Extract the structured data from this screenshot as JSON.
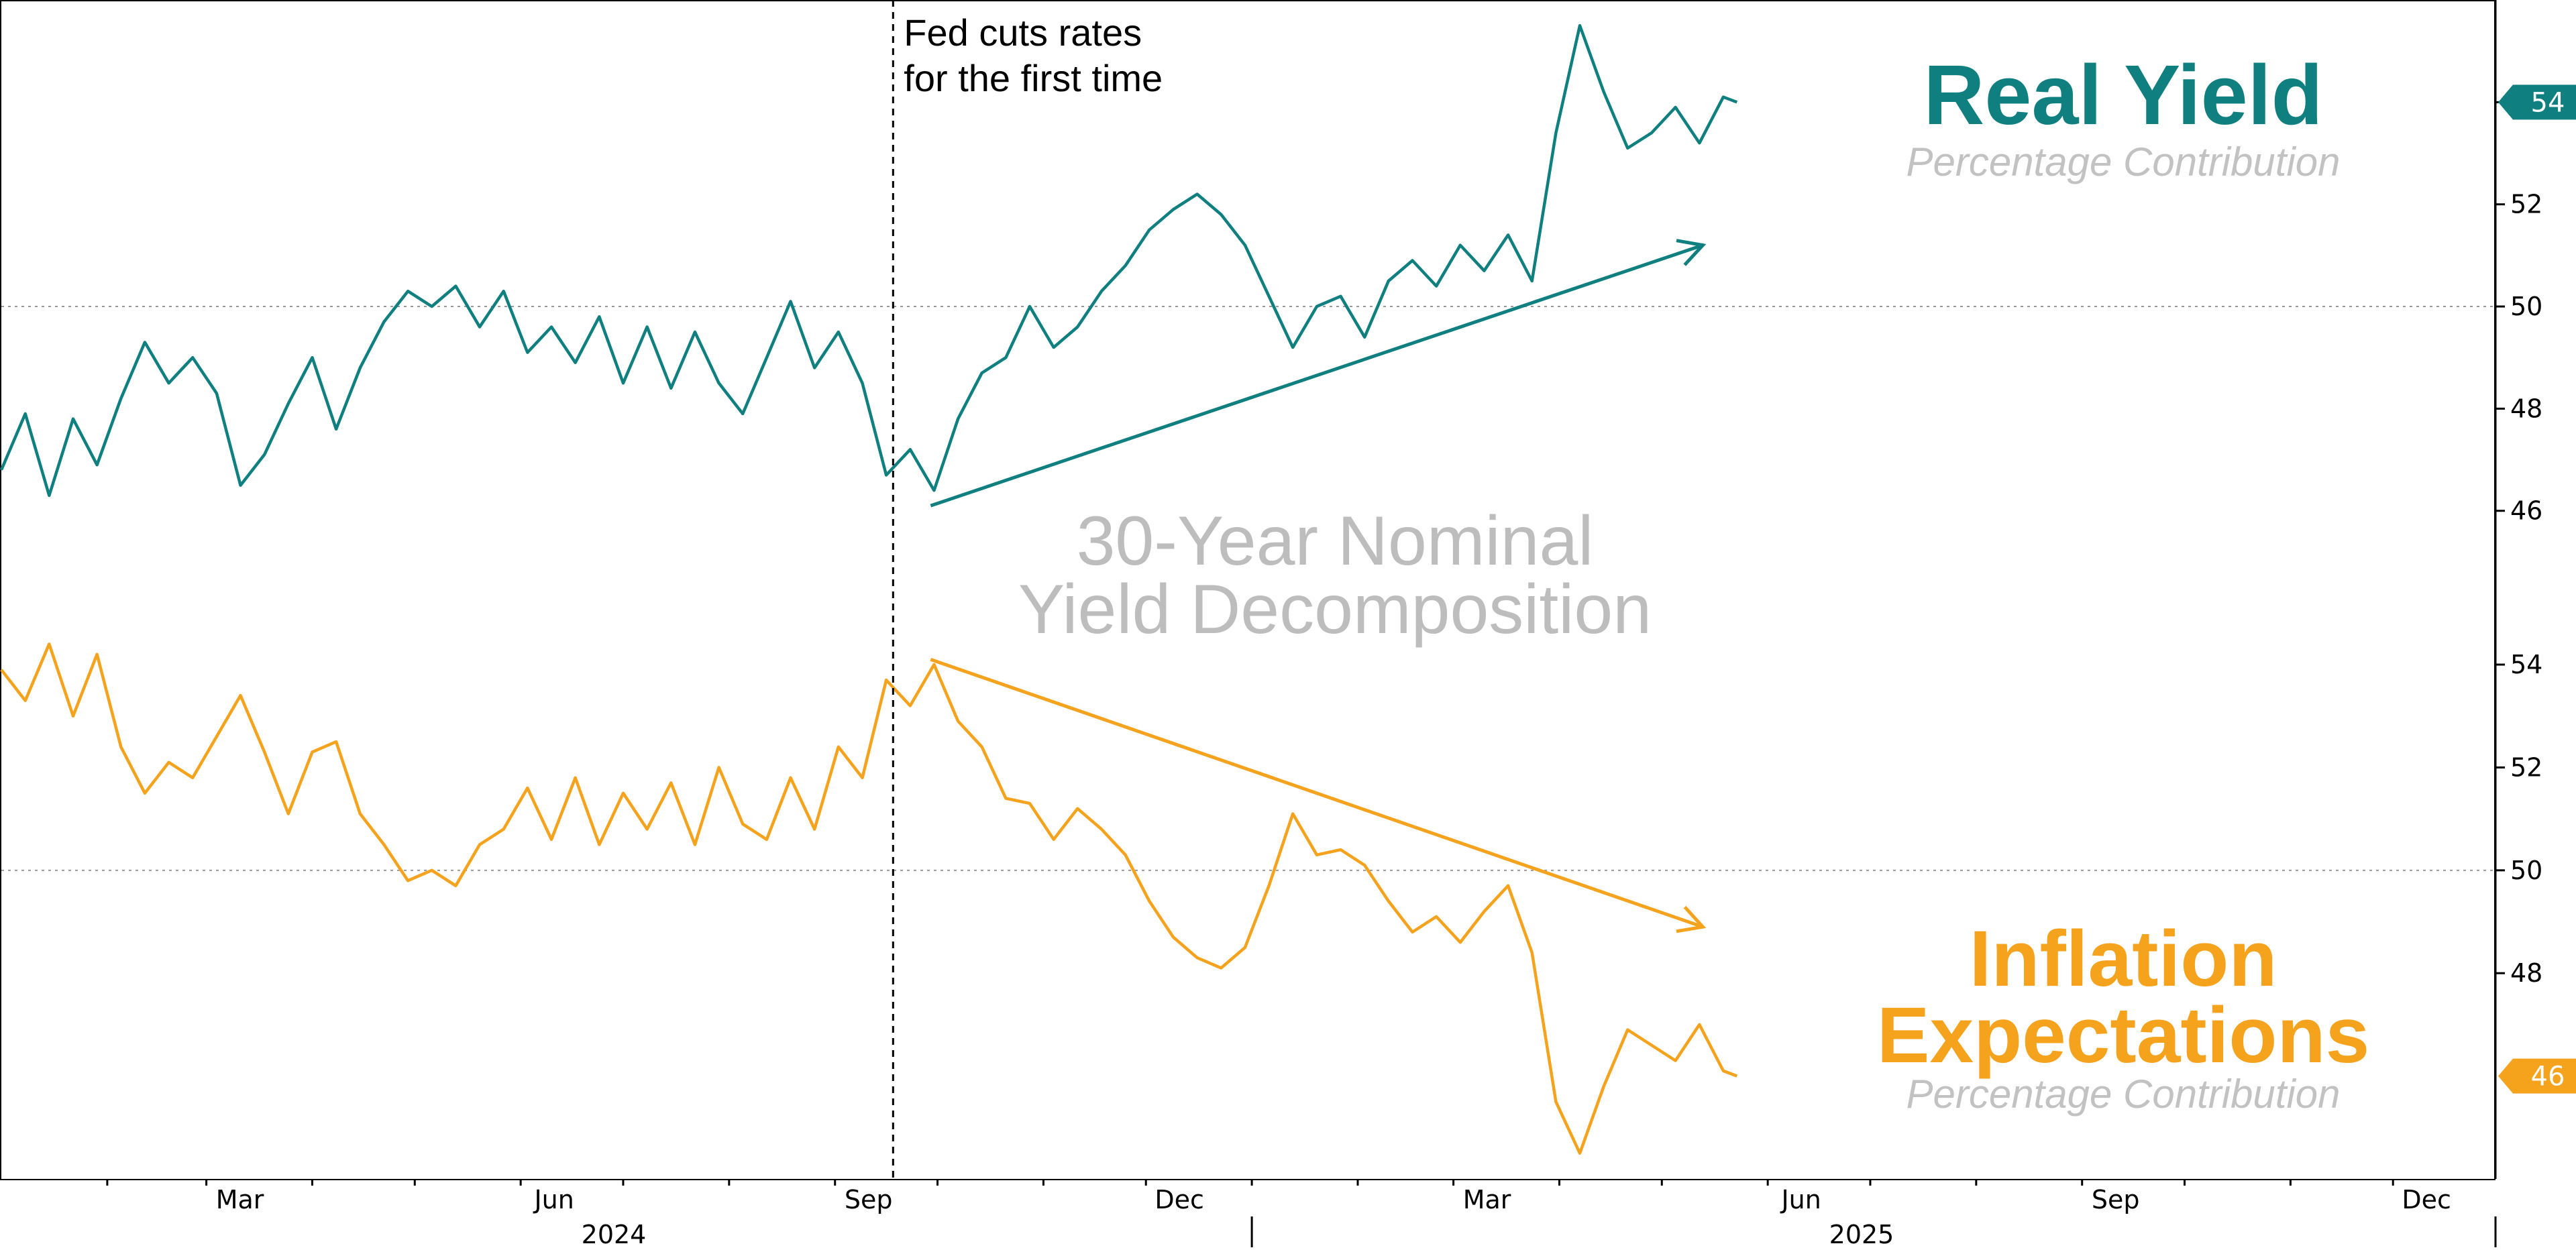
{
  "chart_data": {
    "type": "line",
    "title": "30-Year Nominal Yield Decomposition",
    "annotation": "Fed cuts rates for the first time",
    "annotation_date": "2024-09-18",
    "x_axis": {
      "range": [
        "2024-01-01",
        "2025-12-31"
      ],
      "month_ticks": [
        "Mar",
        "Jun",
        "Sep",
        "Dec",
        "Mar",
        "Jun",
        "Sep",
        "Dec"
      ],
      "years": [
        "2024",
        "2025"
      ]
    },
    "panels": [
      {
        "name": "Real Yield",
        "subtitle": "Percentage Contribution",
        "color": "#107f80",
        "ylim": [
          44.5,
          56
        ],
        "yticks": [
          46,
          48,
          50,
          52,
          54
        ],
        "last_value": 54,
        "trend_arrow": {
          "from": [
            "2024-09-29",
            46.1
          ],
          "to": [
            "2025-05-13",
            51.2
          ]
        }
      },
      {
        "name": "Inflation Expectations",
        "subtitle": "Percentage Contribution",
        "color": "#f5a21d",
        "ylim": [
          44,
          55.5
        ],
        "yticks": [
          48,
          50,
          52,
          54
        ],
        "last_value": 46,
        "trend_arrow": {
          "from": [
            "2024-09-29",
            54.1
          ],
          "to": [
            "2025-05-13",
            48.9
          ]
        }
      }
    ],
    "series": [
      {
        "name": "Real Yield",
        "points": [
          [
            "2024-01-01",
            46.8
          ],
          [
            "2024-01-08",
            47.9
          ],
          [
            "2024-01-15",
            46.3
          ],
          [
            "2024-01-22",
            47.8
          ],
          [
            "2024-01-29",
            46.9
          ],
          [
            "2024-02-05",
            48.2
          ],
          [
            "2024-02-12",
            49.3
          ],
          [
            "2024-02-19",
            48.5
          ],
          [
            "2024-02-26",
            49.0
          ],
          [
            "2024-03-04",
            48.3
          ],
          [
            "2024-03-11",
            46.5
          ],
          [
            "2024-03-18",
            47.1
          ],
          [
            "2024-03-25",
            48.1
          ],
          [
            "2024-04-01",
            49.0
          ],
          [
            "2024-04-08",
            47.6
          ],
          [
            "2024-04-15",
            48.8
          ],
          [
            "2024-04-22",
            49.7
          ],
          [
            "2024-04-29",
            50.3
          ],
          [
            "2024-05-06",
            50.0
          ],
          [
            "2024-05-13",
            50.4
          ],
          [
            "2024-05-20",
            49.6
          ],
          [
            "2024-05-27",
            50.3
          ],
          [
            "2024-06-03",
            49.1
          ],
          [
            "2024-06-10",
            49.6
          ],
          [
            "2024-06-17",
            48.9
          ],
          [
            "2024-06-24",
            49.8
          ],
          [
            "2024-07-01",
            48.5
          ],
          [
            "2024-07-08",
            49.6
          ],
          [
            "2024-07-15",
            48.4
          ],
          [
            "2024-07-22",
            49.5
          ],
          [
            "2024-07-29",
            48.5
          ],
          [
            "2024-08-05",
            47.9
          ],
          [
            "2024-08-12",
            49.0
          ],
          [
            "2024-08-19",
            50.1
          ],
          [
            "2024-08-26",
            48.8
          ],
          [
            "2024-09-02",
            49.5
          ],
          [
            "2024-09-09",
            48.5
          ],
          [
            "2024-09-16",
            46.7
          ],
          [
            "2024-09-23",
            47.2
          ],
          [
            "2024-09-30",
            46.4
          ],
          [
            "2024-10-07",
            47.8
          ],
          [
            "2024-10-14",
            48.7
          ],
          [
            "2024-10-21",
            49.0
          ],
          [
            "2024-10-28",
            50.0
          ],
          [
            "2024-11-04",
            49.2
          ],
          [
            "2024-11-11",
            49.6
          ],
          [
            "2024-11-18",
            50.3
          ],
          [
            "2024-11-25",
            50.8
          ],
          [
            "2024-12-02",
            51.5
          ],
          [
            "2024-12-09",
            51.9
          ],
          [
            "2024-12-16",
            52.2
          ],
          [
            "2024-12-23",
            51.8
          ],
          [
            "2024-12-30",
            51.2
          ],
          [
            "2025-01-06",
            50.2
          ],
          [
            "2025-01-13",
            49.2
          ],
          [
            "2025-01-20",
            50.0
          ],
          [
            "2025-01-27",
            50.2
          ],
          [
            "2025-02-03",
            49.4
          ],
          [
            "2025-02-10",
            50.5
          ],
          [
            "2025-02-17",
            50.9
          ],
          [
            "2025-02-24",
            50.4
          ],
          [
            "2025-03-03",
            51.2
          ],
          [
            "2025-03-10",
            50.7
          ],
          [
            "2025-03-17",
            51.4
          ],
          [
            "2025-03-24",
            50.5
          ],
          [
            "2025-03-31",
            53.4
          ],
          [
            "2025-04-07",
            55.5
          ],
          [
            "2025-04-14",
            54.2
          ],
          [
            "2025-04-21",
            53.1
          ],
          [
            "2025-04-28",
            53.4
          ],
          [
            "2025-05-05",
            53.9
          ],
          [
            "2025-05-12",
            53.2
          ],
          [
            "2025-05-19",
            54.1
          ],
          [
            "2025-05-23",
            54.0
          ]
        ]
      },
      {
        "name": "Inflation Expectations",
        "points": [
          [
            "2024-01-01",
            53.9
          ],
          [
            "2024-01-08",
            53.3
          ],
          [
            "2024-01-15",
            54.4
          ],
          [
            "2024-01-22",
            53.0
          ],
          [
            "2024-01-29",
            54.2
          ],
          [
            "2024-02-05",
            52.4
          ],
          [
            "2024-02-12",
            51.5
          ],
          [
            "2024-02-19",
            52.1
          ],
          [
            "2024-02-26",
            51.8
          ],
          [
            "2024-03-04",
            52.6
          ],
          [
            "2024-03-11",
            53.4
          ],
          [
            "2024-03-18",
            52.3
          ],
          [
            "2024-03-25",
            51.1
          ],
          [
            "2024-04-01",
            52.3
          ],
          [
            "2024-04-08",
            52.5
          ],
          [
            "2024-04-15",
            51.1
          ],
          [
            "2024-04-22",
            50.5
          ],
          [
            "2024-04-29",
            49.8
          ],
          [
            "2024-05-06",
            50.0
          ],
          [
            "2024-05-13",
            49.7
          ],
          [
            "2024-05-20",
            50.5
          ],
          [
            "2024-05-27",
            50.8
          ],
          [
            "2024-06-03",
            51.6
          ],
          [
            "2024-06-10",
            50.6
          ],
          [
            "2024-06-17",
            51.8
          ],
          [
            "2024-06-24",
            50.5
          ],
          [
            "2024-07-01",
            51.5
          ],
          [
            "2024-07-08",
            50.8
          ],
          [
            "2024-07-15",
            51.7
          ],
          [
            "2024-07-22",
            50.5
          ],
          [
            "2024-07-29",
            52.0
          ],
          [
            "2024-08-05",
            50.9
          ],
          [
            "2024-08-12",
            50.6
          ],
          [
            "2024-08-19",
            51.8
          ],
          [
            "2024-08-26",
            50.8
          ],
          [
            "2024-09-02",
            52.4
          ],
          [
            "2024-09-09",
            51.8
          ],
          [
            "2024-09-16",
            53.7
          ],
          [
            "2024-09-23",
            53.2
          ],
          [
            "2024-09-30",
            54.0
          ],
          [
            "2024-10-07",
            52.9
          ],
          [
            "2024-10-14",
            52.4
          ],
          [
            "2024-10-21",
            51.4
          ],
          [
            "2024-10-28",
            51.3
          ],
          [
            "2024-11-04",
            50.6
          ],
          [
            "2024-11-11",
            51.2
          ],
          [
            "2024-11-18",
            50.8
          ],
          [
            "2024-11-25",
            50.3
          ],
          [
            "2024-12-02",
            49.4
          ],
          [
            "2024-12-09",
            48.7
          ],
          [
            "2024-12-16",
            48.3
          ],
          [
            "2024-12-23",
            48.1
          ],
          [
            "2024-12-30",
            48.5
          ],
          [
            "2025-01-06",
            49.7
          ],
          [
            "2025-01-13",
            51.1
          ],
          [
            "2025-01-20",
            50.3
          ],
          [
            "2025-01-27",
            50.4
          ],
          [
            "2025-02-03",
            50.1
          ],
          [
            "2025-02-10",
            49.4
          ],
          [
            "2025-02-17",
            48.8
          ],
          [
            "2025-02-24",
            49.1
          ],
          [
            "2025-03-03",
            48.6
          ],
          [
            "2025-03-10",
            49.2
          ],
          [
            "2025-03-17",
            49.7
          ],
          [
            "2025-03-24",
            48.4
          ],
          [
            "2025-03-31",
            45.5
          ],
          [
            "2025-04-07",
            44.5
          ],
          [
            "2025-04-14",
            45.8
          ],
          [
            "2025-04-21",
            46.9
          ],
          [
            "2025-04-28",
            46.6
          ],
          [
            "2025-05-05",
            46.3
          ],
          [
            "2025-05-12",
            47.0
          ],
          [
            "2025-05-19",
            46.1
          ],
          [
            "2025-05-23",
            46.0
          ]
        ]
      }
    ]
  }
}
